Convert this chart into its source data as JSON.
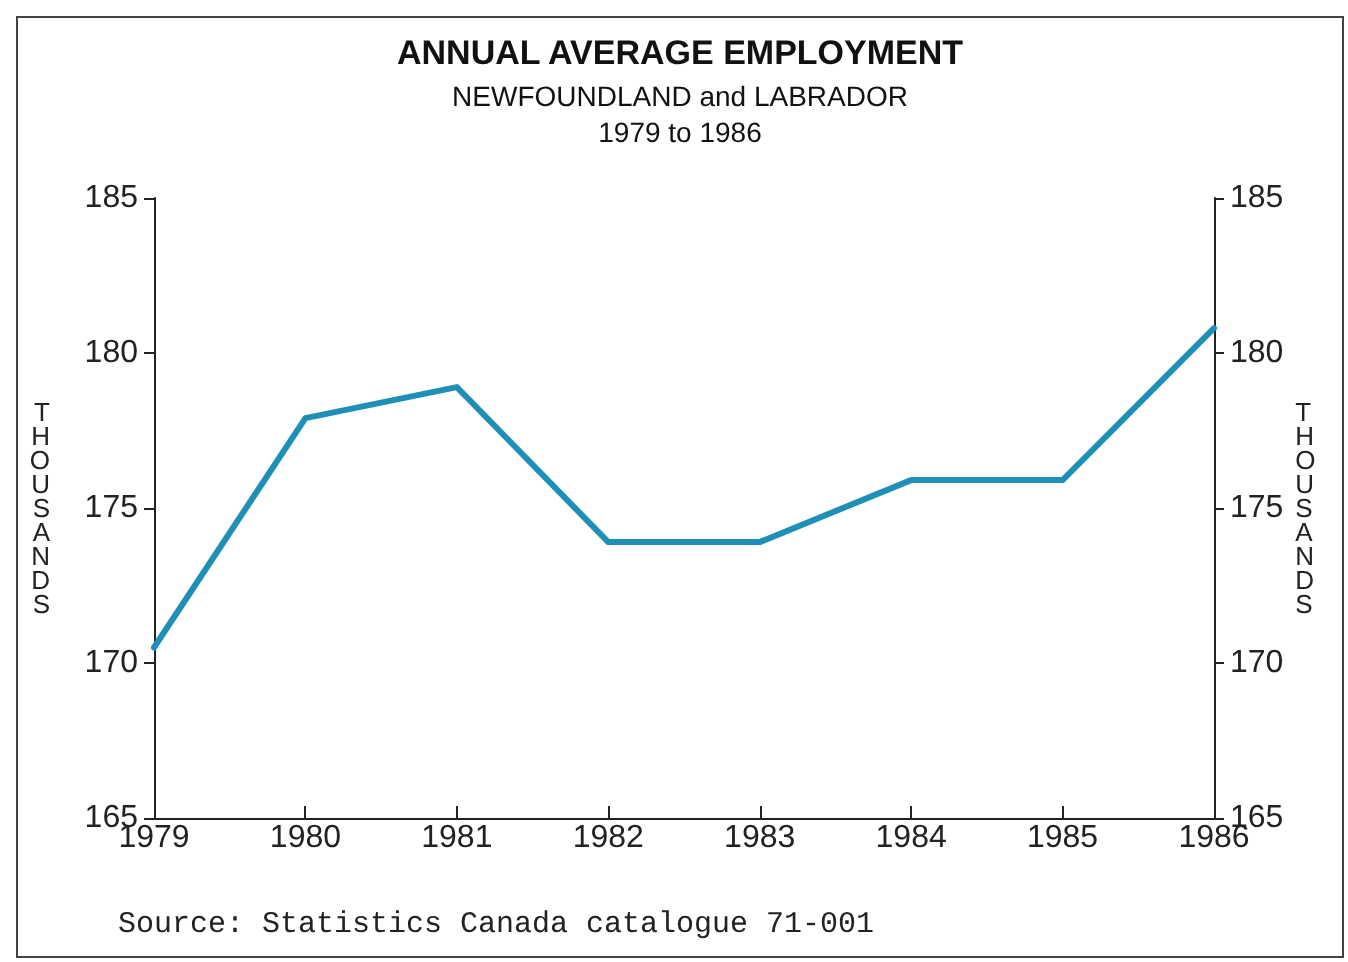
{
  "chart_data": {
    "type": "line",
    "title": "ANNUAL AVERAGE EMPLOYMENT",
    "subtitle": "NEWFOUNDLAND and LABRADOR\n1979 to 1986",
    "ylabel": "THOUSANDS",
    "y2label": "THOUSANDS",
    "categories": [
      "1979",
      "1980",
      "1981",
      "1982",
      "1983",
      "1984",
      "1985",
      "1986"
    ],
    "series": [
      {
        "color": "#1f8fb8",
        "values": [
          170.5,
          177.9,
          178.9,
          173.9,
          173.9,
          175.9,
          175.9,
          180.8
        ]
      }
    ],
    "ylim": [
      165,
      185
    ],
    "yticks": [
      165,
      170,
      175,
      180,
      185
    ],
    "y2lim": [
      165,
      185
    ],
    "y2ticks": [
      165,
      170,
      175,
      180,
      185
    ],
    "grid": false,
    "marker": "none",
    "line_style": "solid",
    "annotations": [
      "Source: Statistics Canada catalogue 71-001"
    ]
  }
}
